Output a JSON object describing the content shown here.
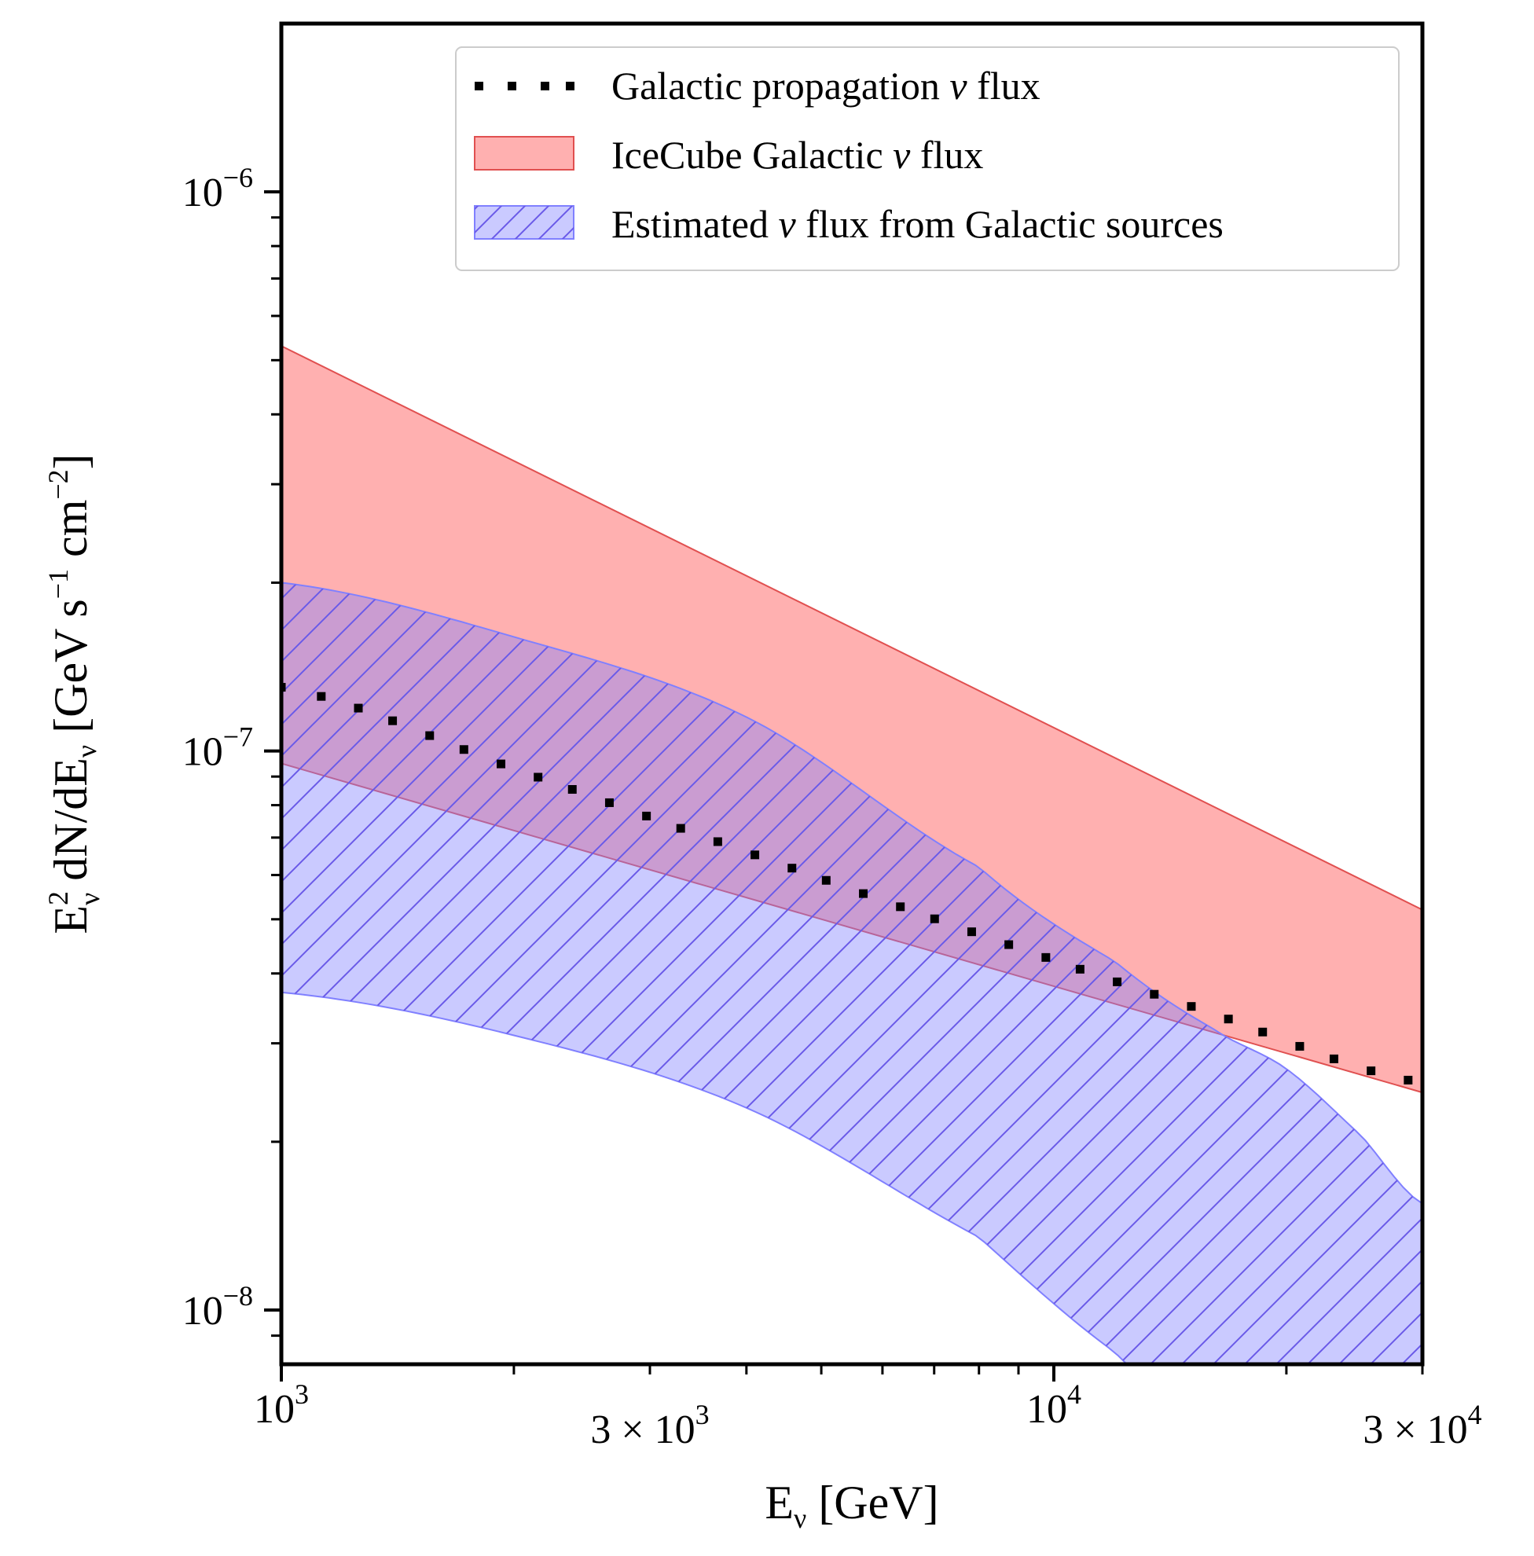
{
  "chart_data": {
    "type": "area",
    "x_scale": "log",
    "y_scale": "log",
    "xlim": [
      1000,
      30000
    ],
    "ylim": [
      8e-09,
      2e-06
    ],
    "x_ticks": [
      {
        "value": 1000,
        "mantissa": "",
        "exp": "3"
      },
      {
        "value": 3000,
        "mantissa": "3 × ",
        "exp": "3"
      },
      {
        "value": 10000,
        "mantissa": "",
        "exp": "4"
      },
      {
        "value": 30000,
        "mantissa": "3 × ",
        "exp": "4"
      }
    ],
    "y_ticks": [
      {
        "value": 1e-08,
        "exp": "−8"
      },
      {
        "value": 1e-07,
        "exp": "−7"
      },
      {
        "value": 1e-06,
        "exp": "−6"
      }
    ],
    "xlabel": {
      "main": "E",
      "sub": "ν",
      "rest": " [GeV]"
    },
    "ylabel": {
      "E": "E",
      "sup2": "2",
      "subnu": "ν",
      "mid": " dN/dE",
      "subnu2": "ν",
      "unit1": " [GeV s",
      "sup1": "−1",
      "unit2": " cm",
      "sup3": "−2",
      "end": "]"
    },
    "legend": {
      "placement": "top-right",
      "entries": [
        {
          "pre": "Galactic propagation ",
          "nu": "ν",
          "post": " flux"
        },
        {
          "pre": "IceCube Galactic ",
          "nu": "ν",
          "post": " flux"
        },
        {
          "pre": "Estimated ",
          "nu": "ν",
          "post": " flux from Galactic sources"
        }
      ]
    },
    "series": [
      {
        "kind": "dotted-line",
        "color": "#000000",
        "x": [
          1000,
          2000,
          4000,
          8000,
          16000,
          30000
        ],
        "y": [
          1.3e-07,
          9.3e-08,
          6.6e-08,
          4.7e-08,
          3.4e-08,
          2.55e-08
        ]
      },
      {
        "kind": "band",
        "color": "#ff6f6f",
        "x": [
          1000,
          30000
        ],
        "upper": [
          5.3e-07,
          5.2e-08
        ],
        "lower": [
          9.5e-08,
          2.45e-08
        ]
      },
      {
        "kind": "hatched-band",
        "color": "#8080ff",
        "hatch_color": "#6a5ae8",
        "x": [
          1000,
          2000,
          4000,
          8000,
          12000,
          16000,
          20000,
          25000,
          30000
        ],
        "upper": [
          2e-07,
          1.6e-07,
          1.15e-07,
          6.2e-08,
          4.2e-08,
          3.2e-08,
          2.7e-08,
          2.05e-08,
          1.55e-08
        ],
        "lower": [
          3.7e-08,
          3.1e-08,
          2.3e-08,
          1.35e-08,
          8.4e-09,
          6e-09,
          4.8e-09,
          3.7e-09,
          3e-09
        ]
      }
    ]
  }
}
